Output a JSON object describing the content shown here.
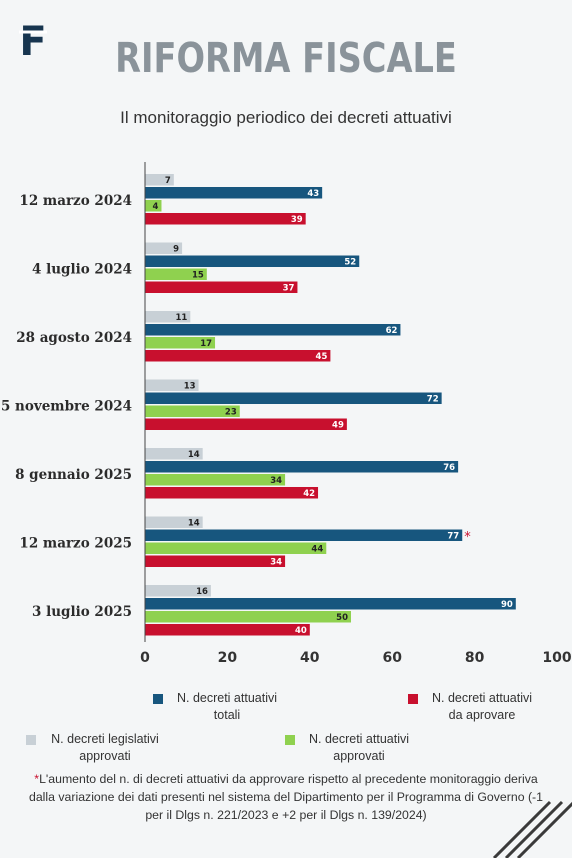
{
  "header": {
    "logo_letter": "F",
    "title": "RIFORMA FISCALE",
    "subtitle": "Il monitoraggio periodico dei decreti attuativi"
  },
  "colors": {
    "legislativi": "#c8d0d6",
    "totali": "#17567e",
    "approvati": "#8fd14f",
    "da_approvare": "#c8102e",
    "title_gray": "#8a939a"
  },
  "chart_data": {
    "type": "bar",
    "orientation": "horizontal",
    "categories": [
      "12 marzo 2024",
      "4 luglio 2024",
      "28 agosto 2024",
      "5 novembre 2024",
      "8 gennaio 2025",
      "12 marzo 2025",
      "3 luglio 2025"
    ],
    "series": [
      {
        "name": "N. decreti legislativi approvati",
        "color": "#c8d0d6",
        "values": [
          7,
          9,
          11,
          13,
          14,
          14,
          16
        ]
      },
      {
        "name": "N. decreti attuativi totali",
        "color": "#17567e",
        "values": [
          43,
          52,
          62,
          72,
          76,
          77,
          90
        ]
      },
      {
        "name": "N. decreti attuativi approvati",
        "color": "#8fd14f",
        "values": [
          4,
          15,
          17,
          23,
          34,
          44,
          50
        ]
      },
      {
        "name": "N. decreti attuativi da aprovare",
        "color": "#c8102e",
        "values": [
          39,
          37,
          45,
          49,
          42,
          34,
          40
        ]
      }
    ],
    "annotations": [
      {
        "category": "12 marzo 2025",
        "series": "N. decreti attuativi totali",
        "mark": "*"
      }
    ],
    "xlim": [
      0,
      100
    ],
    "xticks": [
      0,
      20,
      40,
      60,
      80,
      100
    ],
    "grid": false,
    "legend_position": "bottom"
  },
  "legend": {
    "totali_line1": "N. decreti attuativi",
    "totali_line2": "totali",
    "da_approvare_line1": "N. decreti attuativi",
    "da_approvare_line2": "da aprovare",
    "legislativi_line1": "N. decreti legislativi",
    "legislativi_line2": "approvati",
    "approvati_line1": "N. decreti attuativi",
    "approvati_line2": "approvati"
  },
  "footnote": {
    "star": "*",
    "text": "L'aumento del n. di decreti attuativi da approvare rispetto al precedente monitoraggio deriva dalla variazione dei dati presenti nel sistema del Dipartimento per il Programma di Governo (-1 per il Dlgs n. 221/2023 e +2 per il Dlgs n. 139/2024)"
  }
}
